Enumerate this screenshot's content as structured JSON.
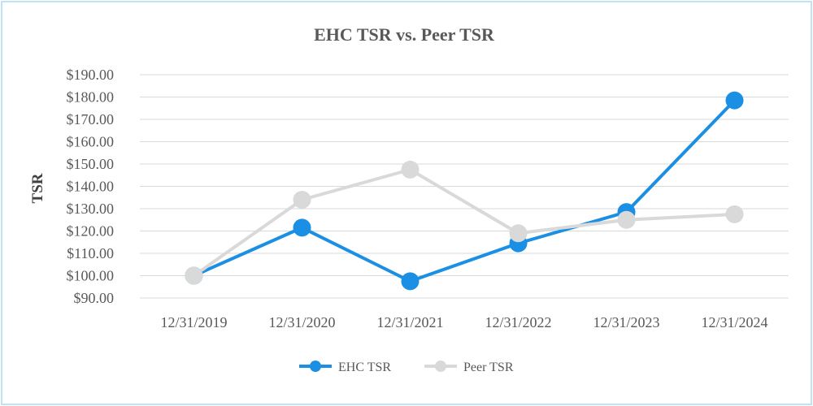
{
  "chart_data": {
    "type": "line",
    "title": "EHC TSR vs. Peer TSR",
    "xlabel": "",
    "ylabel": "TSR",
    "categories": [
      "12/31/2019",
      "12/31/2020",
      "12/31/2021",
      "12/31/2022",
      "12/31/2023",
      "12/31/2024"
    ],
    "ylim": [
      90,
      190
    ],
    "yticks": [
      90,
      100,
      110,
      120,
      130,
      140,
      150,
      160,
      170,
      180,
      190
    ],
    "ytick_labels": [
      "$90.00",
      "$100.00",
      "$110.00",
      "$120.00",
      "$130.00",
      "$140.00",
      "$150.00",
      "$160.00",
      "$170.00",
      "$180.00",
      "$190.00"
    ],
    "grid": true,
    "legend_position": "bottom",
    "series": [
      {
        "name": "EHC TSR",
        "color": "#1a8fe3",
        "values": [
          100.0,
          121.5,
          97.5,
          114.5,
          128.5,
          178.5
        ]
      },
      {
        "name": "Peer TSR",
        "color": "#d9d9d9",
        "values": [
          100.0,
          134.0,
          147.5,
          119.0,
          125.0,
          127.5
        ]
      }
    ]
  }
}
